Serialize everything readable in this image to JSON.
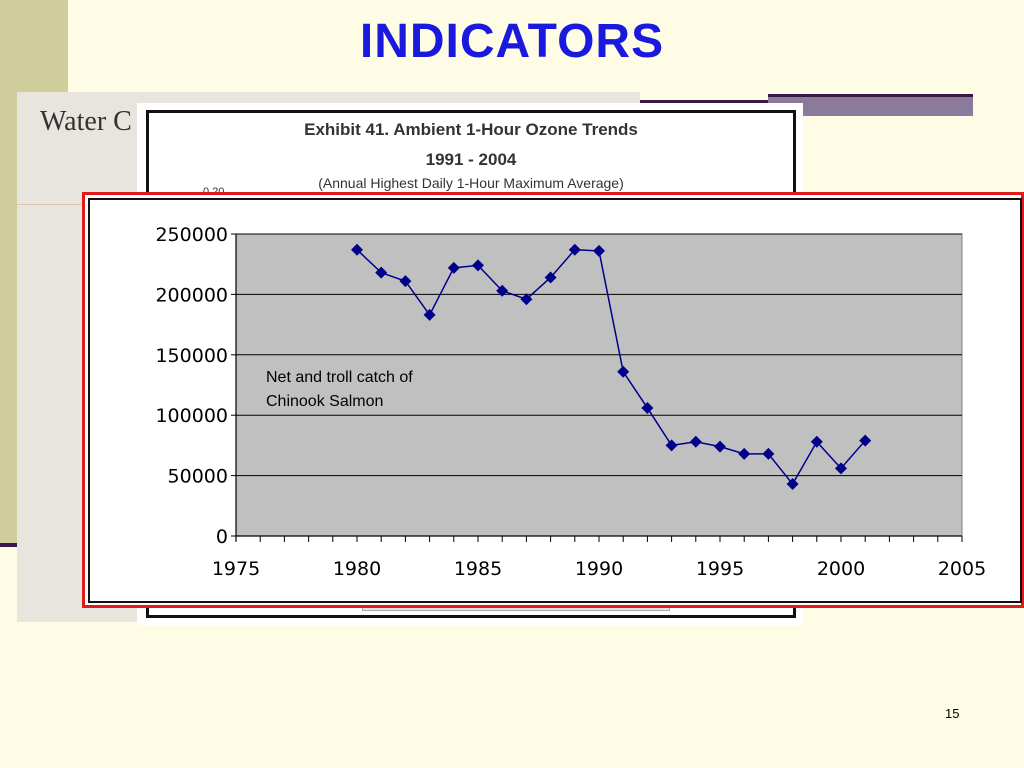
{
  "slide": {
    "title": "INDICATORS",
    "page_number": "15",
    "background_text": "Water C",
    "colors": {
      "title": "#1a1adf",
      "background": "#fffce6",
      "sidebar": "#cfcd9b",
      "accent_line": "#3a1747",
      "callout_border": "#e11b1b"
    }
  },
  "exhibit": {
    "title": "Exhibit 41.  Ambient 1-Hour Ozone Trends",
    "years": "1991 - 2004",
    "subtitle": "(Annual Highest Daily 1-Hour Maximum Average)",
    "axis_fragment": "0.20"
  },
  "chart_data": {
    "type": "line",
    "title": "",
    "xlabel": "",
    "ylabel": "",
    "annotation": [
      "Net and troll catch of",
      "Chinook Salmon"
    ],
    "xlim": [
      1975,
      2005
    ],
    "ylim": [
      0,
      250000
    ],
    "x_ticks": [
      1975,
      1980,
      1985,
      1990,
      1995,
      2000,
      2005
    ],
    "y_ticks": [
      0,
      50000,
      100000,
      150000,
      200000,
      250000
    ],
    "grid": "horizontal",
    "legend": "none",
    "colors": {
      "line": "#00008b",
      "plot_background": "#c0c0c0"
    },
    "series": [
      {
        "x": [
          1980,
          1981,
          1982,
          1983,
          1984,
          1985,
          1986,
          1987,
          1988,
          1989,
          1990,
          1991,
          1992,
          1993,
          1994,
          1995,
          1996,
          1997,
          1998,
          1999,
          2000,
          2001
        ],
        "y": [
          237000,
          218000,
          211000,
          183000,
          222000,
          224000,
          203000,
          196000,
          214000,
          237000,
          236000,
          136000,
          106000,
          75000,
          78000,
          74000,
          68000,
          68000,
          43000,
          78000,
          56000,
          79000
        ]
      }
    ]
  }
}
